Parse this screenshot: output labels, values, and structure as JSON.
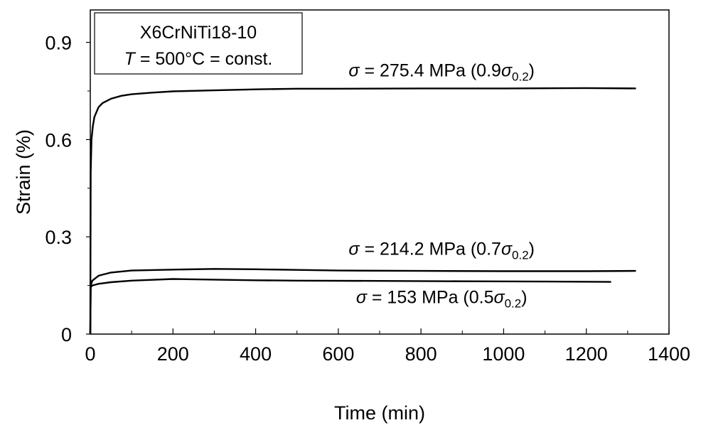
{
  "chart_data": {
    "type": "line",
    "title": "",
    "xlabel": "Time (min)",
    "ylabel": "Strain (%)",
    "xlim": [
      0,
      1400
    ],
    "ylim": [
      0,
      1.0
    ],
    "x_ticks": [
      0,
      200,
      400,
      600,
      800,
      1000,
      1200,
      1400
    ],
    "y_ticks": [
      0,
      0.3,
      0.6,
      0.9
    ],
    "x_tick_labels": [
      "0",
      "200",
      "400",
      "600",
      "800",
      "1000",
      "1200",
      "1400"
    ],
    "y_tick_labels": [
      "0",
      "0.3",
      "0.6",
      "0.9"
    ],
    "grid": false,
    "box": {
      "line1": "X6CrNiTi18-10",
      "line2_var": "T",
      "line2_rest": " = 500°C = const."
    },
    "series": [
      {
        "label_sigma": "σ",
        "label_value": " = 275.4 MPa (0.9",
        "label_sub": "0.2",
        "label_close": ")",
        "label_anchor": [
          850,
          0.795
        ],
        "points": [
          [
            0,
            0
          ],
          [
            1,
            0.5
          ],
          [
            3,
            0.6
          ],
          [
            6,
            0.64
          ],
          [
            10,
            0.67
          ],
          [
            20,
            0.7
          ],
          [
            30,
            0.713
          ],
          [
            50,
            0.726
          ],
          [
            75,
            0.735
          ],
          [
            100,
            0.74
          ],
          [
            150,
            0.745
          ],
          [
            200,
            0.749
          ],
          [
            300,
            0.752
          ],
          [
            400,
            0.755
          ],
          [
            500,
            0.757
          ],
          [
            600,
            0.757
          ],
          [
            800,
            0.758
          ],
          [
            1000,
            0.758
          ],
          [
            1200,
            0.759
          ],
          [
            1320,
            0.758
          ]
        ]
      },
      {
        "label_sigma": "σ",
        "label_value": " = 214.2 MPa (0.7",
        "label_sub": "0.2",
        "label_close": ")",
        "label_anchor": [
          850,
          0.245
        ],
        "points": [
          [
            0,
            0
          ],
          [
            1,
            0.15
          ],
          [
            5,
            0.165
          ],
          [
            20,
            0.18
          ],
          [
            50,
            0.19
          ],
          [
            100,
            0.196
          ],
          [
            200,
            0.199
          ],
          [
            300,
            0.201
          ],
          [
            400,
            0.2
          ],
          [
            500,
            0.198
          ],
          [
            600,
            0.196
          ],
          [
            800,
            0.195
          ],
          [
            1000,
            0.194
          ],
          [
            1200,
            0.194
          ],
          [
            1320,
            0.195
          ]
        ]
      },
      {
        "label_sigma": "σ",
        "label_value": " = 153 MPa (0.5",
        "label_sub": "0.2",
        "label_close": ")",
        "label_anchor": [
          850,
          0.095
        ],
        "points": [
          [
            0,
            0
          ],
          [
            1,
            0.145
          ],
          [
            5,
            0.15
          ],
          [
            20,
            0.155
          ],
          [
            50,
            0.16
          ],
          [
            100,
            0.165
          ],
          [
            200,
            0.17
          ],
          [
            300,
            0.168
          ],
          [
            400,
            0.166
          ],
          [
            500,
            0.165
          ],
          [
            700,
            0.164
          ],
          [
            900,
            0.163
          ],
          [
            1100,
            0.162
          ],
          [
            1260,
            0.161
          ]
        ]
      }
    ]
  }
}
